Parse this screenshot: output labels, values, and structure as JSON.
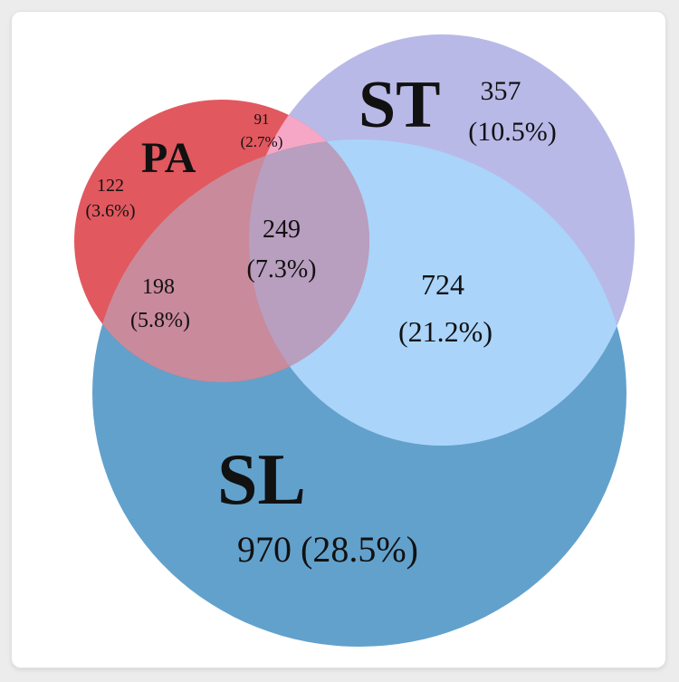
{
  "colors": {
    "pa": "#e2585f",
    "st": "#b9b9e8",
    "sl": "#62a1cc",
    "sl_st": "#aad4fa",
    "pa_st": "#f6a7c6",
    "pa_sl": "#c98a9b",
    "center": "#b89ebf"
  },
  "sets": {
    "pa": "PA",
    "st": "ST",
    "sl": "SL"
  },
  "regions": {
    "pa_only": {
      "count": "122",
      "pct": "(3.6%)"
    },
    "st_only": {
      "count": "357",
      "pct": "(10.5%)"
    },
    "sl_only": {
      "count": "970",
      "pct": "(28.5%)",
      "text": "970 (28.5%)"
    },
    "pa_st": {
      "count": "91",
      "pct": "(2.7%)"
    },
    "pa_sl": {
      "count": "198",
      "pct": "(5.8%)"
    },
    "sl_st": {
      "count": "724",
      "pct": "(21.2%)"
    },
    "all": {
      "count": "249",
      "pct": "(7.3%)"
    }
  }
}
